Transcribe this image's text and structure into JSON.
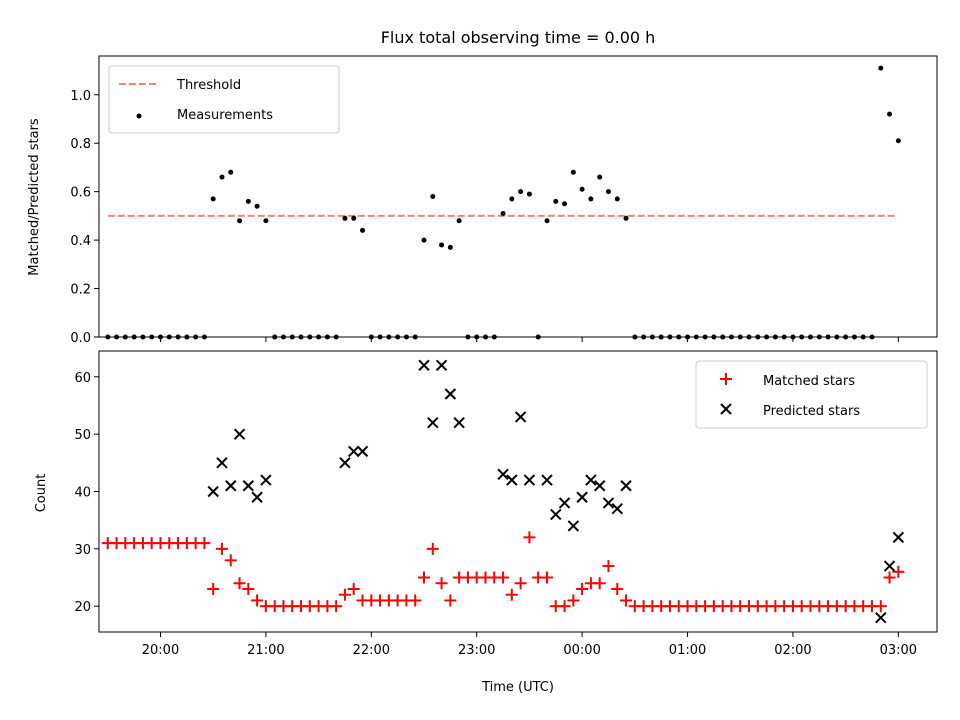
{
  "chart_data": [
    {
      "type": "scatter",
      "title": "Flux total observing time = 0.00 h",
      "xlabel": "",
      "ylabel": "Matched/Predicted stars",
      "ylim": [
        0,
        1.16
      ],
      "xlim": [
        "19:25",
        "03:22"
      ],
      "yticks": [
        "0.0",
        "0.2",
        "0.4",
        "0.6",
        "0.8",
        "1.0"
      ],
      "legend_position": "top-left",
      "threshold": {
        "name": "Threshold",
        "value": 0.5,
        "x_start": "19:30",
        "x_end": "02:58",
        "color": "#ff7f7f",
        "style": "dashed"
      },
      "series": [
        {
          "name": "Measurements",
          "color": "#000000",
          "marker": "dot",
          "points": [
            [
              "19:30",
              0
            ],
            [
              "19:35",
              0
            ],
            [
              "19:40",
              0
            ],
            [
              "19:45",
              0
            ],
            [
              "19:50",
              0
            ],
            [
              "19:55",
              0
            ],
            [
              "20:00",
              0
            ],
            [
              "20:05",
              0
            ],
            [
              "20:10",
              0
            ],
            [
              "20:15",
              0
            ],
            [
              "20:20",
              0
            ],
            [
              "20:25",
              0
            ],
            [
              "20:30",
              0.57
            ],
            [
              "20:35",
              0.66
            ],
            [
              "20:40",
              0.68
            ],
            [
              "20:45",
              0.48
            ],
            [
              "20:50",
              0.56
            ],
            [
              "20:55",
              0.54
            ],
            [
              "21:00",
              0.48
            ],
            [
              "21:05",
              0
            ],
            [
              "21:10",
              0
            ],
            [
              "21:15",
              0
            ],
            [
              "21:20",
              0
            ],
            [
              "21:25",
              0
            ],
            [
              "21:30",
              0
            ],
            [
              "21:35",
              0
            ],
            [
              "21:40",
              0
            ],
            [
              "21:45",
              0.49
            ],
            [
              "21:50",
              0.49
            ],
            [
              "21:55",
              0.44
            ],
            [
              "22:00",
              0
            ],
            [
              "22:05",
              0
            ],
            [
              "22:10",
              0
            ],
            [
              "22:15",
              0
            ],
            [
              "22:20",
              0
            ],
            [
              "22:25",
              0
            ],
            [
              "22:30",
              0.4
            ],
            [
              "22:35",
              0.58
            ],
            [
              "22:40",
              0.38
            ],
            [
              "22:45",
              0.37
            ],
            [
              "22:50",
              0.48
            ],
            [
              "22:55",
              0
            ],
            [
              "23:00",
              0
            ],
            [
              "23:05",
              0
            ],
            [
              "23:10",
              0
            ],
            [
              "23:15",
              0.51
            ],
            [
              "23:20",
              0.57
            ],
            [
              "23:25",
              0.6
            ],
            [
              "23:30",
              0.59
            ],
            [
              "23:35",
              0
            ],
            [
              "23:40",
              0.48
            ],
            [
              "23:45",
              0.56
            ],
            [
              "23:50",
              0.55
            ],
            [
              "23:55",
              0.68
            ],
            [
              "00:00",
              0.61
            ],
            [
              "00:05",
              0.57
            ],
            [
              "00:10",
              0.66
            ],
            [
              "00:15",
              0.6
            ],
            [
              "00:20",
              0.57
            ],
            [
              "00:25",
              0.49
            ],
            [
              "00:30",
              0
            ],
            [
              "00:35",
              0
            ],
            [
              "00:40",
              0
            ],
            [
              "00:45",
              0
            ],
            [
              "00:50",
              0
            ],
            [
              "00:55",
              0
            ],
            [
              "01:00",
              0
            ],
            [
              "01:05",
              0
            ],
            [
              "01:10",
              0
            ],
            [
              "01:15",
              0
            ],
            [
              "01:20",
              0
            ],
            [
              "01:25",
              0
            ],
            [
              "01:30",
              0
            ],
            [
              "01:35",
              0
            ],
            [
              "01:40",
              0
            ],
            [
              "01:45",
              0
            ],
            [
              "01:50",
              0
            ],
            [
              "01:55",
              0
            ],
            [
              "02:00",
              0
            ],
            [
              "02:05",
              0
            ],
            [
              "02:10",
              0
            ],
            [
              "02:15",
              0
            ],
            [
              "02:20",
              0
            ],
            [
              "02:25",
              0
            ],
            [
              "02:30",
              0
            ],
            [
              "02:35",
              0
            ],
            [
              "02:40",
              0
            ],
            [
              "02:45",
              0
            ],
            [
              "02:50",
              1.11
            ],
            [
              "02:55",
              0.92
            ],
            [
              "03:00",
              0.81
            ]
          ]
        }
      ]
    },
    {
      "type": "scatter",
      "title": "",
      "xlabel": "Time (UTC)",
      "ylabel": "Count",
      "ylim": [
        15.5,
        64.5
      ],
      "xlim": [
        "19:25",
        "03:22"
      ],
      "xticks": [
        "20:00",
        "21:00",
        "22:00",
        "23:00",
        "00:00",
        "01:00",
        "02:00",
        "03:00"
      ],
      "yticks": [
        "20",
        "30",
        "40",
        "50",
        "60"
      ],
      "legend_position": "top-right",
      "series": [
        {
          "name": "Matched stars",
          "color": "#ff0000",
          "marker": "plus",
          "points": [
            [
              "19:30",
              31
            ],
            [
              "19:35",
              31
            ],
            [
              "19:40",
              31
            ],
            [
              "19:45",
              31
            ],
            [
              "19:50",
              31
            ],
            [
              "19:55",
              31
            ],
            [
              "20:00",
              31
            ],
            [
              "20:05",
              31
            ],
            [
              "20:10",
              31
            ],
            [
              "20:15",
              31
            ],
            [
              "20:20",
              31
            ],
            [
              "20:25",
              31
            ],
            [
              "20:30",
              23
            ],
            [
              "20:35",
              30
            ],
            [
              "20:40",
              28
            ],
            [
              "20:45",
              24
            ],
            [
              "20:50",
              23
            ],
            [
              "20:55",
              21
            ],
            [
              "21:00",
              20
            ],
            [
              "21:05",
              20
            ],
            [
              "21:10",
              20
            ],
            [
              "21:15",
              20
            ],
            [
              "21:20",
              20
            ],
            [
              "21:25",
              20
            ],
            [
              "21:30",
              20
            ],
            [
              "21:35",
              20
            ],
            [
              "21:40",
              20
            ],
            [
              "21:45",
              22
            ],
            [
              "21:50",
              23
            ],
            [
              "21:55",
              21
            ],
            [
              "22:00",
              21
            ],
            [
              "22:05",
              21
            ],
            [
              "22:10",
              21
            ],
            [
              "22:15",
              21
            ],
            [
              "22:20",
              21
            ],
            [
              "22:25",
              21
            ],
            [
              "22:30",
              25
            ],
            [
              "22:35",
              30
            ],
            [
              "22:40",
              24
            ],
            [
              "22:45",
              21
            ],
            [
              "22:50",
              25
            ],
            [
              "22:55",
              25
            ],
            [
              "23:00",
              25
            ],
            [
              "23:05",
              25
            ],
            [
              "23:10",
              25
            ],
            [
              "23:15",
              25
            ],
            [
              "23:20",
              22
            ],
            [
              "23:25",
              24
            ],
            [
              "23:30",
              32
            ],
            [
              "23:35",
              25
            ],
            [
              "23:40",
              25
            ],
            [
              "23:45",
              20
            ],
            [
              "23:50",
              20
            ],
            [
              "23:55",
              21
            ],
            [
              "00:00",
              23
            ],
            [
              "00:05",
              24
            ],
            [
              "00:10",
              24
            ],
            [
              "00:15",
              27
            ],
            [
              "00:20",
              23
            ],
            [
              "00:25",
              21
            ],
            [
              "00:30",
              20
            ],
            [
              "00:35",
              20
            ],
            [
              "00:40",
              20
            ],
            [
              "00:45",
              20
            ],
            [
              "00:50",
              20
            ],
            [
              "00:55",
              20
            ],
            [
              "01:00",
              20
            ],
            [
              "01:05",
              20
            ],
            [
              "01:10",
              20
            ],
            [
              "01:15",
              20
            ],
            [
              "01:20",
              20
            ],
            [
              "01:25",
              20
            ],
            [
              "01:30",
              20
            ],
            [
              "01:35",
              20
            ],
            [
              "01:40",
              20
            ],
            [
              "01:45",
              20
            ],
            [
              "01:50",
              20
            ],
            [
              "01:55",
              20
            ],
            [
              "02:00",
              20
            ],
            [
              "02:05",
              20
            ],
            [
              "02:10",
              20
            ],
            [
              "02:15",
              20
            ],
            [
              "02:20",
              20
            ],
            [
              "02:25",
              20
            ],
            [
              "02:30",
              20
            ],
            [
              "02:35",
              20
            ],
            [
              "02:40",
              20
            ],
            [
              "02:45",
              20
            ],
            [
              "02:50",
              20
            ],
            [
              "02:55",
              25
            ],
            [
              "03:00",
              26
            ]
          ]
        },
        {
          "name": "Predicted stars",
          "color": "#000000",
          "marker": "x",
          "points": [
            [
              "20:30",
              40
            ],
            [
              "20:35",
              45
            ],
            [
              "20:40",
              41
            ],
            [
              "20:45",
              50
            ],
            [
              "20:50",
              41
            ],
            [
              "20:55",
              39
            ],
            [
              "21:00",
              42
            ],
            [
              "21:45",
              45
            ],
            [
              "21:50",
              47
            ],
            [
              "21:55",
              47
            ],
            [
              "22:30",
              62
            ],
            [
              "22:35",
              52
            ],
            [
              "22:40",
              62
            ],
            [
              "22:45",
              57
            ],
            [
              "22:50",
              52
            ],
            [
              "23:15",
              43
            ],
            [
              "23:20",
              42
            ],
            [
              "23:25",
              53
            ],
            [
              "23:30",
              42
            ],
            [
              "23:40",
              42
            ],
            [
              "23:45",
              36
            ],
            [
              "23:50",
              38
            ],
            [
              "23:55",
              34
            ],
            [
              "00:00",
              39
            ],
            [
              "00:05",
              42
            ],
            [
              "00:10",
              41
            ],
            [
              "00:15",
              38
            ],
            [
              "00:20",
              37
            ],
            [
              "00:25",
              41
            ],
            [
              "02:50",
              18
            ],
            [
              "02:55",
              27
            ],
            [
              "03:00",
              32
            ]
          ]
        }
      ]
    }
  ]
}
